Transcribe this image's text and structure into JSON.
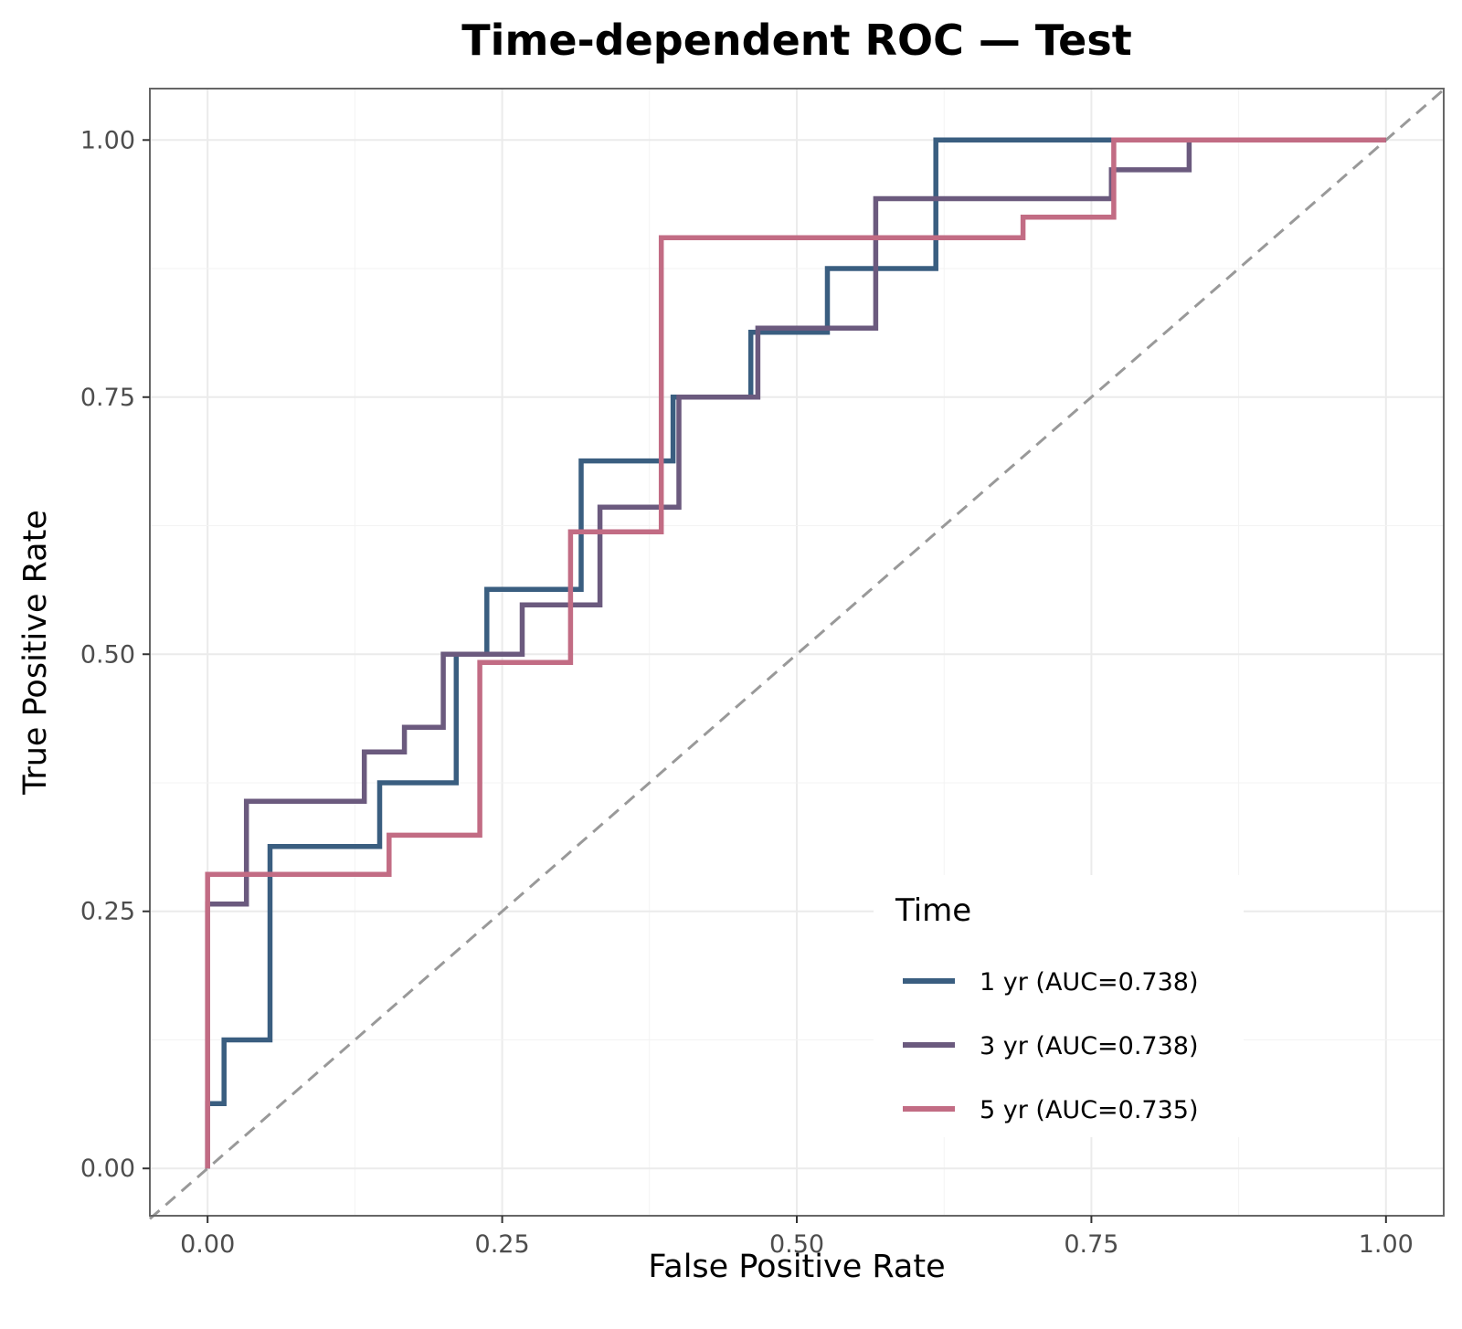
{
  "chart_data": {
    "type": "line",
    "title": "Time-dependent ROC — Test",
    "xlabel": "False Positive Rate",
    "ylabel": "True Positive Rate",
    "xlim": [
      -0.049,
      1.049
    ],
    "ylim": [
      -0.046,
      1.05
    ],
    "xticks": [
      0,
      0.25,
      0.5,
      0.75,
      1
    ],
    "xtick_labels": [
      "0.00",
      "0.25",
      "0.50",
      "0.75",
      "1.00"
    ],
    "yticks": [
      0,
      0.25,
      0.5,
      0.75,
      1
    ],
    "ytick_labels": [
      "0.00",
      "0.25",
      "0.50",
      "0.75",
      "1.00"
    ],
    "grid": true,
    "reference_line": {
      "x": [
        -0.049,
        1.049
      ],
      "y": [
        -0.049,
        1.049
      ],
      "style": "dashed",
      "color": "#999999"
    },
    "legend": {
      "title": "Time",
      "position": "lower-right"
    },
    "series": [
      {
        "name": "1 yr (AUC=0.738)",
        "color": "#3a5e80",
        "x": [
          0,
          0,
          0.014,
          0.014,
          0.053,
          0.053,
          0.146,
          0.146,
          0.211,
          0.211,
          0.237,
          0.237,
          0.317,
          0.317,
          0.395,
          0.395,
          0.461,
          0.461,
          0.526,
          0.526,
          0.618,
          0.618,
          1
        ],
        "y": [
          0,
          0.063,
          0.063,
          0.125,
          0.125,
          0.313,
          0.313,
          0.375,
          0.375,
          0.5,
          0.5,
          0.563,
          0.563,
          0.688,
          0.688,
          0.75,
          0.75,
          0.813,
          0.813,
          0.875,
          0.875,
          1,
          1
        ]
      },
      {
        "name": "3 yr (AUC=0.738)",
        "color": "#6b5a7e",
        "x": [
          0,
          0,
          0.033,
          0.033,
          0.133,
          0.133,
          0.167,
          0.167,
          0.2,
          0.2,
          0.267,
          0.267,
          0.333,
          0.333,
          0.4,
          0.4,
          0.467,
          0.467,
          0.567,
          0.567,
          0.767,
          0.767,
          0.833,
          0.833,
          1
        ],
        "y": [
          0,
          0.257,
          0.257,
          0.357,
          0.357,
          0.405,
          0.405,
          0.429,
          0.429,
          0.5,
          0.5,
          0.548,
          0.548,
          0.643,
          0.643,
          0.75,
          0.75,
          0.817,
          0.817,
          0.943,
          0.943,
          0.971,
          0.971,
          1,
          1
        ]
      },
      {
        "name": "5 yr (AUC=0.735)",
        "color": "#c26c84",
        "x": [
          0,
          0,
          0.154,
          0.154,
          0.231,
          0.231,
          0.308,
          0.308,
          0.385,
          0.385,
          0.692,
          0.692,
          0.769,
          0.769,
          1
        ],
        "y": [
          0,
          0.286,
          0.286,
          0.324,
          0.324,
          0.492,
          0.492,
          0.619,
          0.619,
          0.905,
          0.905,
          0.925,
          0.925,
          1,
          1
        ]
      }
    ]
  }
}
